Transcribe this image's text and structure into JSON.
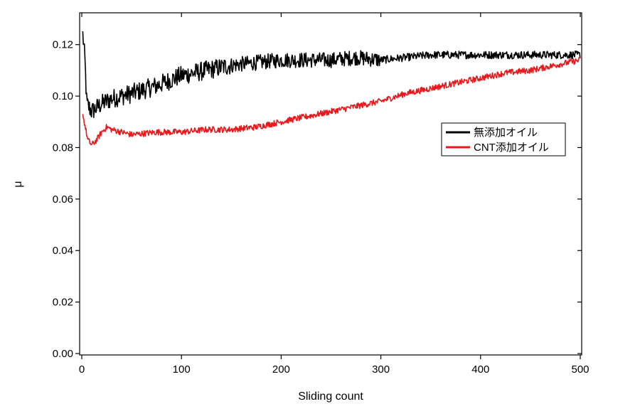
{
  "chart_data": {
    "type": "line",
    "title": "",
    "xlabel": "Sliding count",
    "ylabel": "μ",
    "xlim": [
      0,
      500
    ],
    "ylim": [
      0,
      0.13
    ],
    "xticks": [
      "0",
      "100",
      "200",
      "300",
      "400",
      "500"
    ],
    "yticks": [
      "0.00",
      "0.02",
      "0.04",
      "0.06",
      "0.08",
      "0.10",
      "0.12"
    ],
    "grid": false,
    "legend_position": "right-middle",
    "series": [
      {
        "name": "無添加オイル",
        "color": "#000000",
        "noise": 0.003,
        "points": [
          [
            1,
            0.124
          ],
          [
            3,
            0.115
          ],
          [
            5,
            0.097
          ],
          [
            10,
            0.094
          ],
          [
            20,
            0.097
          ],
          [
            30,
            0.099
          ],
          [
            50,
            0.101
          ],
          [
            75,
            0.104
          ],
          [
            100,
            0.108
          ],
          [
            125,
            0.11
          ],
          [
            150,
            0.112
          ],
          [
            175,
            0.113
          ],
          [
            200,
            0.114
          ],
          [
            225,
            0.114
          ],
          [
            250,
            0.114
          ],
          [
            275,
            0.115
          ],
          [
            300,
            0.114
          ],
          [
            325,
            0.115
          ],
          [
            350,
            0.116
          ],
          [
            375,
            0.116
          ],
          [
            400,
            0.116
          ],
          [
            425,
            0.116
          ],
          [
            450,
            0.116
          ],
          [
            475,
            0.116
          ],
          [
            500,
            0.116
          ]
        ]
      },
      {
        "name": "CNT添加オイル",
        "color": "#e8191c",
        "noise": 0.0012,
        "points": [
          [
            1,
            0.093
          ],
          [
            3,
            0.089
          ],
          [
            6,
            0.083
          ],
          [
            10,
            0.081
          ],
          [
            15,
            0.083
          ],
          [
            20,
            0.086
          ],
          [
            25,
            0.088
          ],
          [
            30,
            0.087
          ],
          [
            50,
            0.085
          ],
          [
            75,
            0.086
          ],
          [
            100,
            0.086
          ],
          [
            125,
            0.087
          ],
          [
            150,
            0.087
          ],
          [
            175,
            0.088
          ],
          [
            200,
            0.09
          ],
          [
            225,
            0.092
          ],
          [
            250,
            0.094
          ],
          [
            275,
            0.096
          ],
          [
            300,
            0.098
          ],
          [
            325,
            0.101
          ],
          [
            350,
            0.103
          ],
          [
            375,
            0.105
          ],
          [
            400,
            0.107
          ],
          [
            425,
            0.109
          ],
          [
            450,
            0.11
          ],
          [
            475,
            0.112
          ],
          [
            500,
            0.114
          ]
        ]
      }
    ]
  }
}
